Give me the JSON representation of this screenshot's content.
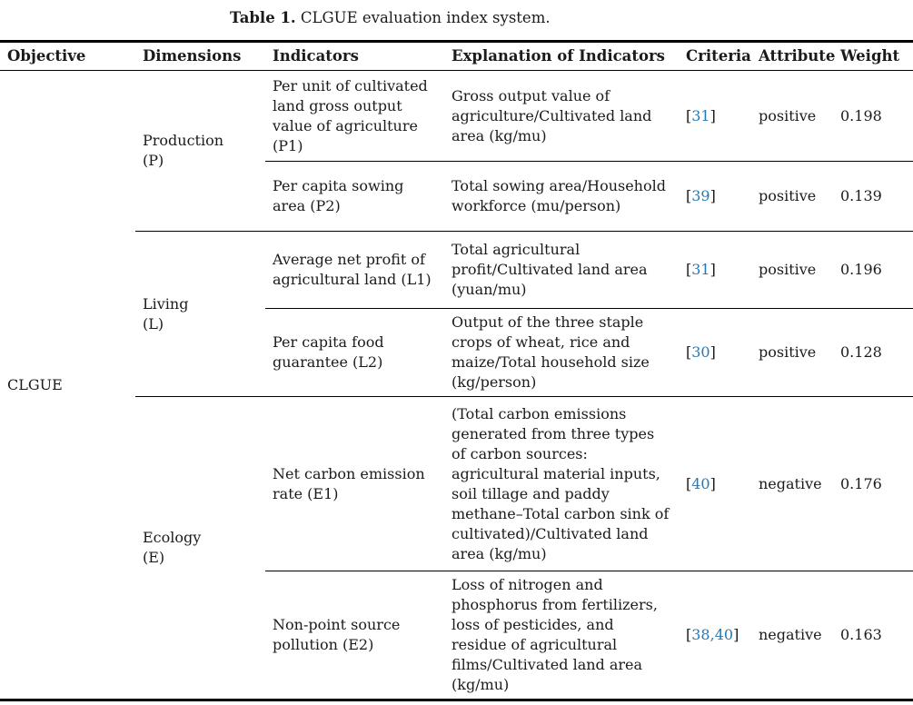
{
  "caption": {
    "label": "Table 1.",
    "text": "CLGUE evaluation index system."
  },
  "columns": {
    "objective": "Objective",
    "dimensions": "Dimensions",
    "indicators": "Indicators",
    "explanation": "Explanation of Indicators",
    "criteria": "Criteria",
    "attribute": "Attribute",
    "weight": "Weight"
  },
  "objective": "CLGUE",
  "dimensions": {
    "production": "Production\n(P)",
    "living": "Living\n(L)",
    "ecology": "Ecology\n(E)"
  },
  "rows": [
    {
      "indicator": "Per unit of cultivated land gross output value of agriculture (P1)",
      "explanation": "Gross output value of agriculture/Cultivated land area (kg/mu)",
      "criteria": {
        "open": "[",
        "ref": "31",
        "close": "]"
      },
      "attribute": "positive",
      "weight": "0.198"
    },
    {
      "indicator": "Per capita sowing area (P2)",
      "explanation": "Total sowing area/Household workforce (mu/person)",
      "criteria": {
        "open": "[",
        "ref": "39",
        "close": "]"
      },
      "attribute": "positive",
      "weight": "0.139"
    },
    {
      "indicator": "Average net profit of agricultural land (L1)",
      "explanation": "Total agricultural profit/Cultivated land area (yuan/mu)",
      "criteria": {
        "open": "[",
        "ref": "31",
        "close": "]"
      },
      "attribute": "positive",
      "weight": "0.196"
    },
    {
      "indicator": "Per capita food guarantee (L2)",
      "explanation": "Output of the three staple crops of wheat, rice and maize/Total household size (kg/person)",
      "criteria": {
        "open": "[",
        "ref": "30",
        "close": "]"
      },
      "attribute": "positive",
      "weight": "0.128"
    },
    {
      "indicator": "Net carbon emission rate (E1)",
      "explanation": "(Total carbon emissions generated from three types of carbon sources: agricultural material inputs, soil tillage and paddy methane–Total carbon sink of cultivated)/Cultivated land area (kg/mu)",
      "criteria": {
        "open": "[",
        "ref": "40",
        "close": "]"
      },
      "attribute": "negative",
      "weight": "0.176"
    },
    {
      "indicator": "Non-point source pollution (E2)",
      "explanation": "Loss of nitrogen and phosphorus from fertilizers, loss of pesticides, and residue of agricultural films/Cultivated land area (kg/mu)",
      "criteria": {
        "open": "[",
        "ref": "38,40",
        "close": "]"
      },
      "attribute": "negative",
      "weight": "0.163"
    }
  ],
  "colors": {
    "citation_blue": "#2479b5",
    "text": "#1b1b1b",
    "rule": "#000000"
  }
}
